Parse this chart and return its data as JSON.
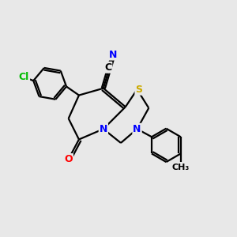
{
  "background_color": "#E8E8E8",
  "bond_color": "#000000",
  "atom_colors": {
    "N": "#0000FF",
    "S": "#CCAA00",
    "O": "#FF0000",
    "Cl": "#00BB00",
    "CN_C": "#000000",
    "CN_N": "#0000FF"
  },
  "font_size_atom": 9,
  "line_width": 1.6
}
